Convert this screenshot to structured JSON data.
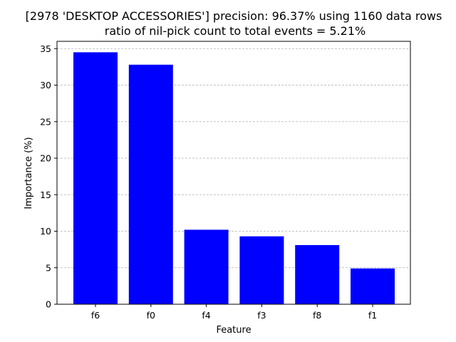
{
  "chart_data": {
    "type": "bar",
    "title_line1": "[2978 'DESKTOP ACCESSORIES'] precision: 96.37% using 1160 data rows",
    "title_line2": "ratio of nil-pick count to total events = 5.21%",
    "xlabel": "Feature",
    "ylabel": "Importance (%)",
    "categories": [
      "f6",
      "f0",
      "f4",
      "f3",
      "f8",
      "f1"
    ],
    "values": [
      34.5,
      32.8,
      10.2,
      9.3,
      8.1,
      4.9
    ],
    "ylim": [
      0,
      36
    ],
    "yticks": [
      0,
      5,
      10,
      15,
      20,
      25,
      30,
      35
    ],
    "grid": "y-dashed",
    "bar_color": "#0000ff",
    "grid_color": "#b0b0b0"
  }
}
